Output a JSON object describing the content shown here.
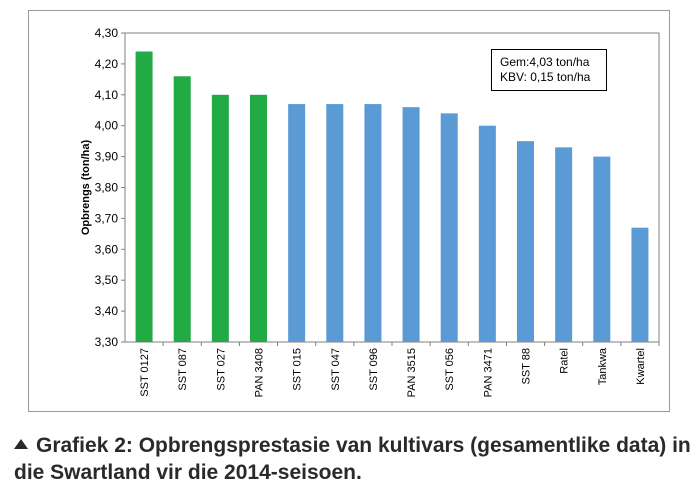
{
  "chart_data": {
    "type": "bar",
    "ylabel": "Opbrengs (ton/ha)",
    "xlabel": "",
    "ylim": [
      3.3,
      4.3
    ],
    "yticks": [
      "3,30",
      "3,40",
      "3,50",
      "3,60",
      "3,70",
      "3,80",
      "3,90",
      "4,00",
      "4,10",
      "4,20",
      "4,30"
    ],
    "categories": [
      "SST 0127",
      "SST 087",
      "SST 027",
      "PAN 3408",
      "SST 015",
      "SST 047",
      "SST 096",
      "PAN 3515",
      "SST 056",
      "PAN 3471",
      "SST 88",
      "Ratel",
      "Tankwa",
      "Kwartel"
    ],
    "values": [
      4.24,
      4.16,
      4.1,
      4.1,
      4.07,
      4.07,
      4.07,
      4.06,
      4.04,
      4.0,
      3.95,
      3.93,
      3.9,
      3.67
    ],
    "bar_colors": [
      "#22aa44",
      "#22aa44",
      "#22aa44",
      "#22aa44",
      "#5b9bd5",
      "#5b9bd5",
      "#5b9bd5",
      "#5b9bd5",
      "#5b9bd5",
      "#5b9bd5",
      "#5b9bd5",
      "#5b9bd5",
      "#5b9bd5",
      "#5b9bd5"
    ],
    "grid": false,
    "annotation": {
      "line1": "Gem:4,03 ton/ha",
      "line2": "KBV: 0,15 ton/ha"
    }
  },
  "caption": "Grafiek 2: Opbrengsprestasie van kultivars (gesamentlike data) in die Swartland vir die 2014-seisoen."
}
